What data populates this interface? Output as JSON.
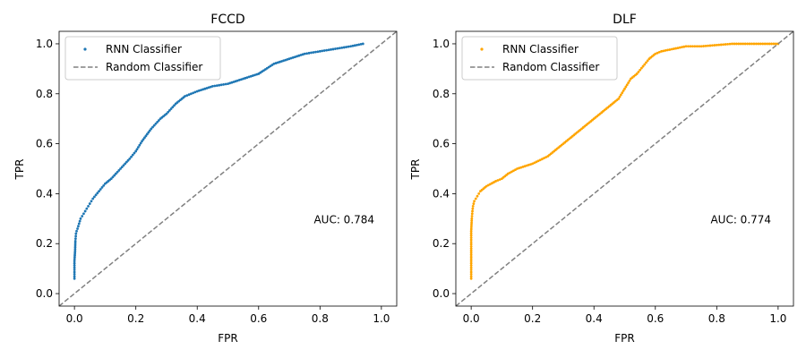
{
  "chart_data": [
    {
      "type": "scatter",
      "title": "FCCD",
      "xlabel": "FPR",
      "ylabel": "TPR",
      "xlim": [
        -0.05,
        1.05
      ],
      "ylim": [
        -0.05,
        1.05
      ],
      "xticks": [
        "0.0",
        "0.2",
        "0.4",
        "0.6",
        "0.8",
        "1.0"
      ],
      "yticks": [
        "0.0",
        "0.2",
        "0.4",
        "0.6",
        "0.8",
        "1.0"
      ],
      "grid": false,
      "legend_position": "top-left",
      "annotation": "AUC: 0.784",
      "annotation_pos": [
        0.78,
        0.3
      ],
      "series": [
        {
          "name": "RNN Classifier",
          "kind": "scatter",
          "color": "#1f77b4",
          "x": [
            0.0,
            0.0,
            0.002,
            0.003,
            0.005,
            0.007,
            0.01,
            0.015,
            0.02,
            0.03,
            0.04,
            0.05,
            0.06,
            0.08,
            0.1,
            0.12,
            0.15,
            0.18,
            0.2,
            0.22,
            0.25,
            0.28,
            0.3,
            0.33,
            0.36,
            0.38,
            0.4,
            0.45,
            0.5,
            0.55,
            0.6,
            0.65,
            0.7,
            0.75,
            0.8,
            0.85,
            0.9,
            0.94
          ],
          "y": [
            0.06,
            0.13,
            0.17,
            0.21,
            0.24,
            0.25,
            0.26,
            0.28,
            0.3,
            0.32,
            0.34,
            0.36,
            0.38,
            0.41,
            0.44,
            0.46,
            0.5,
            0.54,
            0.57,
            0.61,
            0.66,
            0.7,
            0.72,
            0.76,
            0.79,
            0.8,
            0.81,
            0.83,
            0.84,
            0.86,
            0.88,
            0.92,
            0.94,
            0.96,
            0.97,
            0.98,
            0.99,
            1.0
          ]
        },
        {
          "name": "Random Classifier",
          "kind": "line",
          "style": "dashed",
          "color": "#808080",
          "x": [
            -0.05,
            1.05
          ],
          "y": [
            -0.05,
            1.05
          ]
        }
      ]
    },
    {
      "type": "scatter",
      "title": "DLF",
      "xlabel": "FPR",
      "ylabel": "TPR",
      "xlim": [
        -0.05,
        1.05
      ],
      "ylim": [
        -0.05,
        1.05
      ],
      "xticks": [
        "0.0",
        "0.2",
        "0.4",
        "0.6",
        "0.8",
        "1.0"
      ],
      "yticks": [
        "0.0",
        "0.2",
        "0.4",
        "0.6",
        "0.8",
        "1.0"
      ],
      "grid": false,
      "legend_position": "top-left",
      "annotation": "AUC: 0.774",
      "annotation_pos": [
        0.78,
        0.3
      ],
      "series": [
        {
          "name": "RNN Classifier",
          "kind": "scatter",
          "color": "#ffa500",
          "x": [
            0.0,
            0.0,
            0.0,
            0.0,
            0.002,
            0.004,
            0.006,
            0.01,
            0.02,
            0.03,
            0.05,
            0.08,
            0.1,
            0.12,
            0.15,
            0.2,
            0.25,
            0.28,
            0.3,
            0.33,
            0.35,
            0.38,
            0.4,
            0.43,
            0.46,
            0.48,
            0.5,
            0.52,
            0.54,
            0.56,
            0.58,
            0.6,
            0.62,
            0.66,
            0.7,
            0.75,
            0.8,
            0.85,
            0.9,
            0.95,
            1.0
          ],
          "y": [
            0.06,
            0.13,
            0.18,
            0.25,
            0.3,
            0.33,
            0.35,
            0.37,
            0.39,
            0.41,
            0.43,
            0.45,
            0.46,
            0.48,
            0.5,
            0.52,
            0.55,
            0.58,
            0.6,
            0.63,
            0.65,
            0.68,
            0.7,
            0.73,
            0.76,
            0.78,
            0.82,
            0.86,
            0.88,
            0.91,
            0.94,
            0.96,
            0.97,
            0.98,
            0.99,
            0.99,
            0.995,
            1.0,
            1.0,
            1.0,
            1.0
          ]
        },
        {
          "name": "Random Classifier",
          "kind": "line",
          "style": "dashed",
          "color": "#808080",
          "x": [
            -0.05,
            1.05
          ],
          "y": [
            -0.05,
            1.05
          ]
        }
      ]
    }
  ]
}
